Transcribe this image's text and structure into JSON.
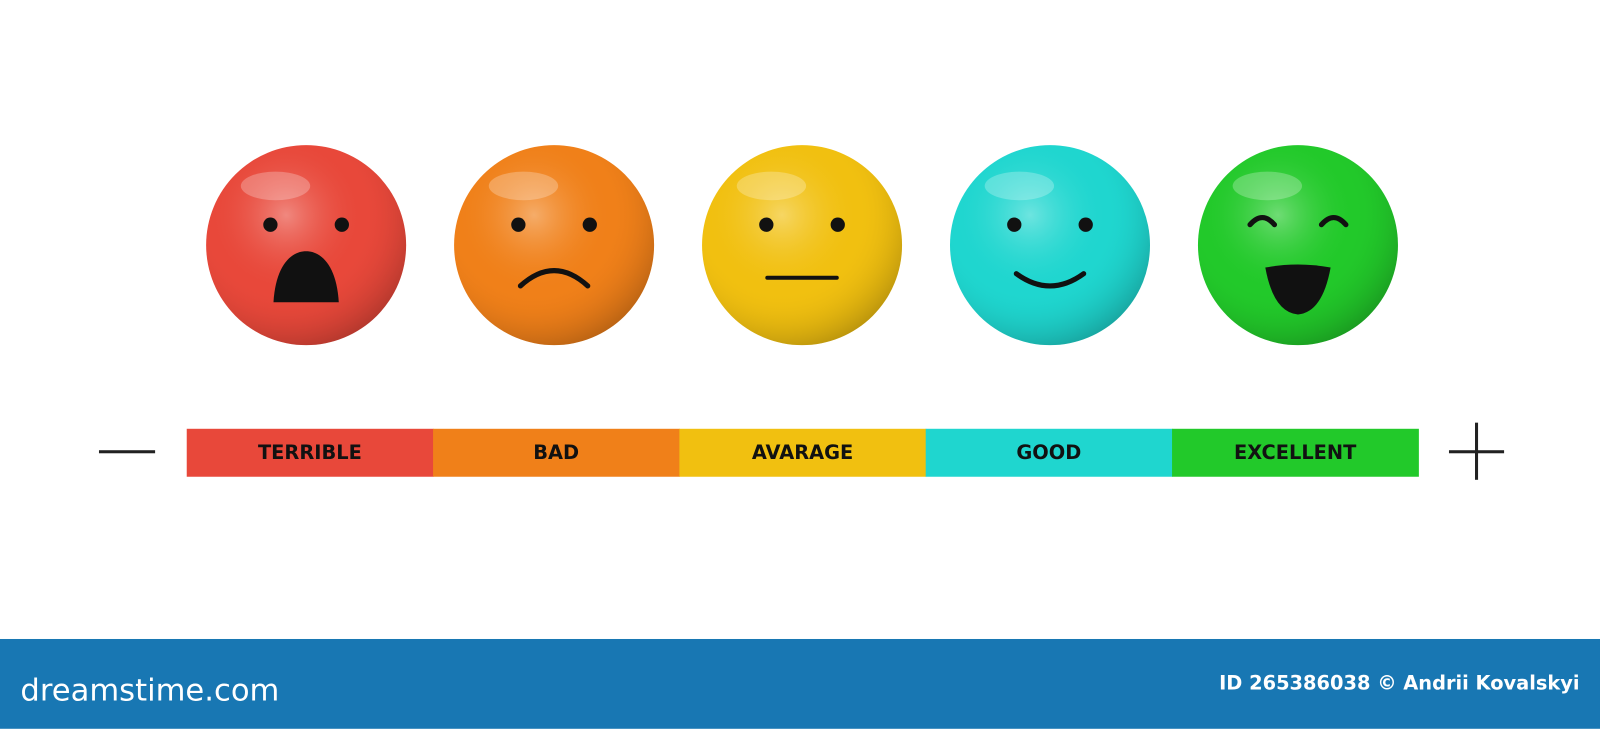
{
  "scale": {
    "levels": [
      {
        "label": "TERRIBLE",
        "color": "#e8483a"
      },
      {
        "label": "BAD",
        "color": "#f08019"
      },
      {
        "label": "AVARAGE",
        "color": "#f1c010"
      },
      {
        "label": "GOOD",
        "color": "#1fd6cf"
      },
      {
        "label": "EXCELLENT",
        "color": "#22c92a"
      }
    ]
  },
  "footer": {
    "brand": "dreamstime.com",
    "credit": "ID 265386038 © Andrii Kovalskyi"
  }
}
